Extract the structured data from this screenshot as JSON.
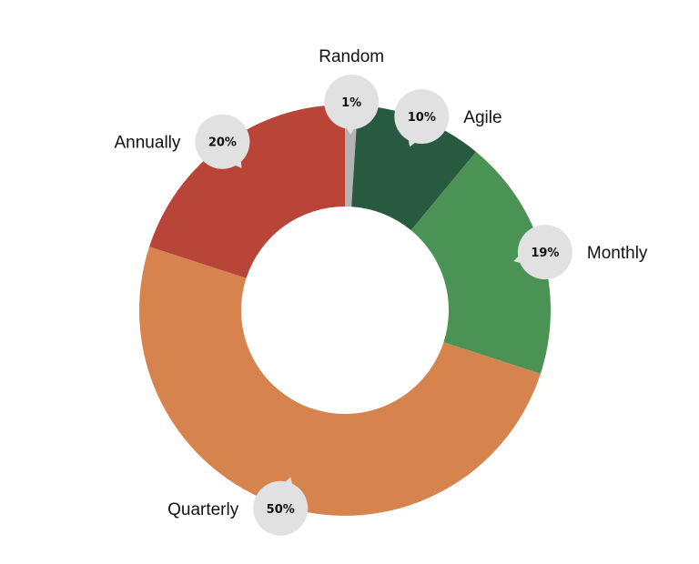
{
  "chart_data": {
    "type": "pie",
    "variant": "donut",
    "title": "",
    "slices": [
      {
        "label": "Random",
        "value": 1,
        "display": "1%",
        "color": "#b3b3b3"
      },
      {
        "label": "Agile",
        "value": 10,
        "display": "10%",
        "color": "#275a3f"
      },
      {
        "label": "Monthly",
        "value": 19,
        "display": "19%",
        "color": "#4a9354"
      },
      {
        "label": "Quarterly",
        "value": 50,
        "display": "50%",
        "color": "#d6834e"
      },
      {
        "label": "Annually",
        "value": 20,
        "display": "20%",
        "color": "#b84538"
      }
    ],
    "start_angle_deg": 0,
    "direction": "clockwise",
    "legend": "none",
    "label_bubble_color": "#e1e1e1"
  }
}
